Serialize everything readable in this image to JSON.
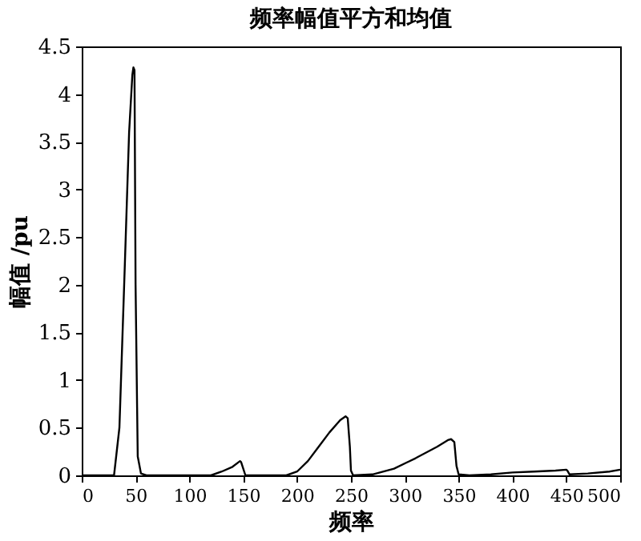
{
  "chart_data": {
    "type": "line",
    "title": "频率幅值平方和均值",
    "xlabel": "频率",
    "ylabel": "幅值 /pu",
    "xlim": [
      0,
      500
    ],
    "ylim": [
      0,
      4.5
    ],
    "xticks": [
      0,
      50,
      100,
      150,
      200,
      250,
      300,
      350,
      400,
      450,
      500
    ],
    "yticks": [
      0,
      0.5,
      1,
      1.5,
      2,
      2.5,
      3,
      3.5,
      4,
      4.5
    ],
    "grid": false,
    "marker": "none",
    "line_style": "solid",
    "series": [
      {
        "color": "#000000",
        "x": [
          0,
          30,
          35,
          40,
          44,
          47,
          48,
          49,
          50,
          52,
          55,
          60,
          120,
          130,
          140,
          147,
          148,
          150,
          152,
          190,
          200,
          210,
          220,
          230,
          240,
          245,
          247,
          249,
          250,
          252,
          270,
          290,
          310,
          330,
          340,
          343,
          346,
          348,
          350,
          360,
          380,
          400,
          420,
          440,
          450,
          451,
          453,
          470,
          490,
          500
        ],
        "values": [
          0,
          0,
          0.5,
          2.2,
          3.6,
          4.2,
          4.28,
          4.25,
          2.0,
          0.2,
          0.02,
          0,
          0,
          0.04,
          0.09,
          0.15,
          0.14,
          0.07,
          0,
          0,
          0.04,
          0.15,
          0.3,
          0.45,
          0.58,
          0.62,
          0.6,
          0.3,
          0.05,
          0,
          0.01,
          0.07,
          0.18,
          0.3,
          0.37,
          0.38,
          0.35,
          0.1,
          0.01,
          0,
          0.01,
          0.03,
          0.04,
          0.05,
          0.06,
          0.05,
          0.01,
          0.02,
          0.04,
          0.06
        ]
      }
    ]
  }
}
